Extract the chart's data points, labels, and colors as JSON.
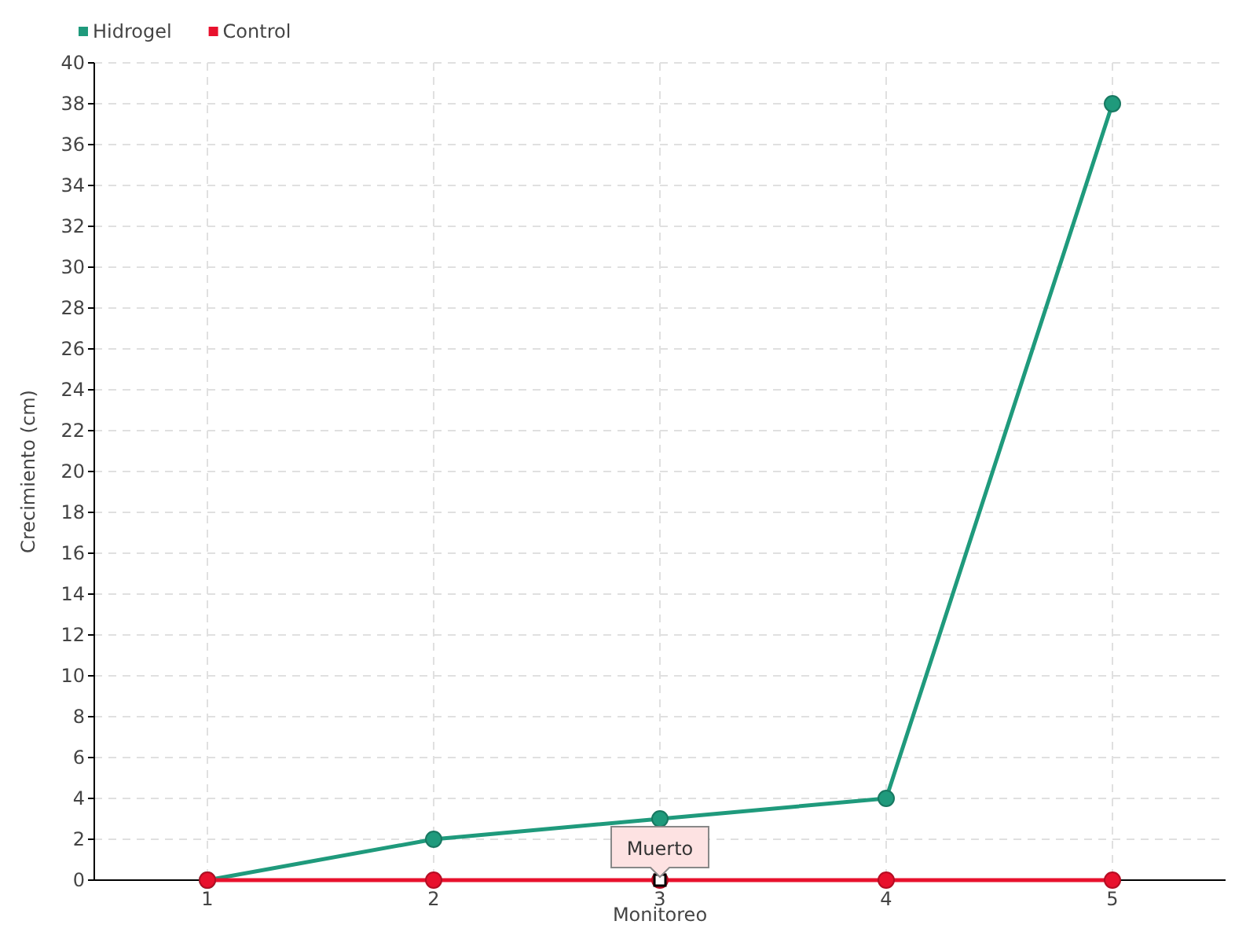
{
  "chart_data": {
    "type": "line",
    "xlabel": "Monitoreo",
    "ylabel": "Crecimiento (cm)",
    "x": [
      1,
      2,
      3,
      4,
      5
    ],
    "xlim": [
      0.5,
      5.5
    ],
    "xticks": [
      1,
      2,
      3,
      4,
      5
    ],
    "ylim": [
      0,
      40
    ],
    "yticks": [
      0,
      2,
      4,
      6,
      8,
      10,
      12,
      14,
      16,
      18,
      20,
      22,
      24,
      26,
      28,
      30,
      32,
      34,
      36,
      38,
      40
    ],
    "grid": true,
    "legend": "top left",
    "marker": "circle",
    "series": [
      {
        "name": "Hidrogel",
        "color": "#1f9a7c",
        "values": [
          0,
          2,
          3,
          4,
          38
        ]
      },
      {
        "name": "Control",
        "color": "#e8112d",
        "values": [
          0,
          0,
          0,
          0,
          0
        ]
      }
    ],
    "annotations": [
      {
        "text": "Muerto",
        "x": 3,
        "y": 0
      }
    ]
  }
}
